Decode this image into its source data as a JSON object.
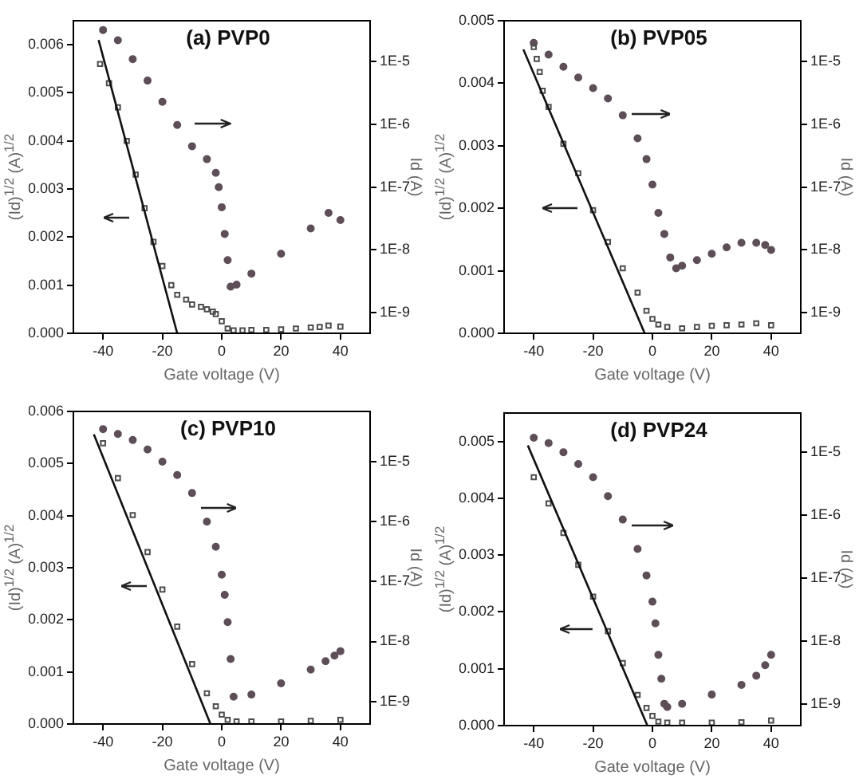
{
  "chart_data": [
    {
      "type": "scatter",
      "title": "(a) PVP0",
      "xlabel": "Gate voltage (V)",
      "ylabel": "(Id)$^{1/2}$ (A)$^{1/2}$",
      "y2label": "Id (A)",
      "grid": false,
      "legend": false,
      "xlim": [
        -50,
        50
      ],
      "xticks": [
        -40,
        -20,
        0,
        20,
        40
      ],
      "ylim": [
        0,
        0.0065
      ],
      "yticks": [
        {
          "value": 0,
          "label": "0.000"
        },
        {
          "value": 0.001,
          "label": "0.001"
        },
        {
          "value": 0.002,
          "label": "0.002"
        },
        {
          "value": 0.003,
          "label": "0.003"
        },
        {
          "value": 0.004,
          "label": "0.004"
        },
        {
          "value": 0.005,
          "label": "0.005"
        },
        {
          "value": 0.006,
          "label": "0.006"
        }
      ],
      "y2lim": [
        4.7e-10,
        4.5e-05
      ],
      "y2ticks": [
        {
          "value": 1e-05,
          "label": "1E-5"
        },
        {
          "value": 1e-06,
          "label": "1E-6"
        },
        {
          "value": 1e-07,
          "label": "1E-7"
        },
        {
          "value": 1e-08,
          "label": "1E-8"
        },
        {
          "value": 1e-09,
          "label": "1E-9"
        }
      ],
      "log": "y2",
      "series": [
        {
          "type": "scatter",
          "marker": "square",
          "color": "#4d4d4d",
          "x": [
            -41,
            -38,
            -35,
            -32,
            -29,
            -26,
            -23,
            -20,
            -17,
            -15,
            -12,
            -10,
            -7,
            -5,
            -3,
            -2,
            0,
            2,
            4,
            7,
            10,
            15,
            20,
            25,
            30,
            33,
            36,
            40
          ],
          "values": [
            0.0056,
            0.0052,
            0.0047,
            0.004,
            0.0033,
            0.0026,
            0.0019,
            0.0014,
            0.001,
            0.0008,
            0.0007,
            0.0006,
            0.00055,
            0.0005,
            0.00045,
            0.0004,
            0.00025,
            0.0001,
            6e-05,
            6e-05,
            7e-05,
            7e-05,
            8e-05,
            0.0001,
            0.00012,
            0.00013,
            0.00016,
            0.00014
          ]
        },
        {
          "type": "line",
          "marker": "none",
          "color": "#111111",
          "x": [
            -41.5,
            -15
          ],
          "values": [
            0.0061,
            0
          ]
        },
        {
          "type": "scatter",
          "marker": "circle",
          "color": "#5e4e58",
          "axis": "y2",
          "x": [
            -40,
            -35,
            -30,
            -25,
            -20,
            -15,
            -10,
            -5,
            -2,
            -1,
            0,
            1,
            2,
            3,
            5,
            10,
            20,
            30,
            36,
            40
          ],
          "values": [
            3.2e-05,
            2.2e-05,
            1.1e-05,
            5e-06,
            2.3e-06,
            9.8e-07,
            4.5e-07,
            2.8e-07,
            1.7e-07,
            1e-07,
            4.8e-08,
            1.8e-08,
            6.9e-09,
            2.6e-09,
            2.8e-09,
            4.2e-09,
            8.7e-09,
            2.2e-08,
            3.9e-08,
            3e-08
          ]
        }
      ]
    },
    {
      "type": "scatter",
      "title": "(b) PVP05",
      "xlabel": "Gate voltage (V)",
      "ylabel": "(Id)$^{1/2}$ (A)$^{1/2}$",
      "y2label": "Id (A)",
      "grid": false,
      "legend": false,
      "xlim": [
        -50,
        50
      ],
      "xticks": [
        -40,
        -20,
        0,
        20,
        40
      ],
      "ylim": [
        0,
        0.005
      ],
      "yticks": [
        {
          "value": 0,
          "label": "0.000"
        },
        {
          "value": 0.001,
          "label": "0.001"
        },
        {
          "value": 0.002,
          "label": "0.002"
        },
        {
          "value": 0.003,
          "label": "0.003"
        },
        {
          "value": 0.004,
          "label": "0.004"
        },
        {
          "value": 0.005,
          "label": "0.005"
        }
      ],
      "y2lim": [
        4.7e-10,
        4.5e-05
      ],
      "y2ticks": [
        {
          "value": 1e-05,
          "label": "1E-5"
        },
        {
          "value": 1e-06,
          "label": "1E-6"
        },
        {
          "value": 1e-07,
          "label": "1E-7"
        },
        {
          "value": 1e-08,
          "label": "1E-8"
        },
        {
          "value": 1e-09,
          "label": "1E-9"
        }
      ],
      "log": "y2",
      "series": [
        {
          "type": "scatter",
          "marker": "square",
          "color": "#4d4d4d",
          "x": [
            -40,
            -39,
            -38,
            -37,
            -35,
            -30,
            -25,
            -20,
            -15,
            -10,
            -5,
            -2,
            0,
            2,
            5,
            10,
            15,
            20,
            25,
            30,
            35,
            40
          ],
          "values": [
            0.00458,
            0.00439,
            0.00418,
            0.00388,
            0.00362,
            0.00303,
            0.00256,
            0.00197,
            0.00146,
            0.00104,
            0.00065,
            0.00036,
            0.00023,
            0.00014,
            0.0001,
            8e-05,
            0.0001,
            0.00012,
            0.00013,
            0.00014,
            0.00016,
            0.00013
          ]
        },
        {
          "type": "line",
          "marker": "none",
          "color": "#111111",
          "x": [
            -43.5,
            -2.6
          ],
          "values": [
            0.00454,
            0
          ]
        },
        {
          "type": "scatter",
          "marker": "circle",
          "color": "#5e4e58",
          "axis": "y2",
          "x": [
            -40,
            -35,
            -30,
            -25,
            -20,
            -15,
            -10,
            -5,
            -2,
            0,
            2,
            4,
            6,
            8,
            10,
            15,
            20,
            25,
            30,
            35,
            38,
            40
          ],
          "values": [
            2e-05,
            1.3e-05,
            8.3e-06,
            5.6e-06,
            3.8e-06,
            2.6e-06,
            1.4e-06,
            6e-07,
            2.8e-07,
            1.1e-07,
            3.9e-08,
            1.8e-08,
            7.6e-09,
            5.1e-09,
            5.6e-09,
            6.9e-09,
            8.7e-09,
            1.1e-08,
            1.3e-08,
            1.3e-08,
            1.2e-08,
            1e-08
          ]
        }
      ]
    },
    {
      "type": "scatter",
      "title": "(c) PVP10",
      "xlabel": "Gate voltage (V)",
      "ylabel": "(Id)$^{1/2}$ (A)$^{1/2}$",
      "y2label": "Id (A)",
      "grid": false,
      "legend": false,
      "xlim": [
        -50,
        50
      ],
      "xticks": [
        -40,
        -20,
        0,
        20,
        40
      ],
      "ylim": [
        0,
        0.006
      ],
      "yticks": [
        {
          "value": 0,
          "label": "0.000"
        },
        {
          "value": 0.001,
          "label": "0.001"
        },
        {
          "value": 0.002,
          "label": "0.002"
        },
        {
          "value": 0.003,
          "label": "0.003"
        },
        {
          "value": 0.004,
          "label": "0.004"
        },
        {
          "value": 0.005,
          "label": "0.005"
        },
        {
          "value": 0.006,
          "label": "0.006"
        }
      ],
      "y2lim": [
        4.2e-10,
        6.9e-05
      ],
      "y2ticks": [
        {
          "value": 1e-05,
          "label": "1E-5"
        },
        {
          "value": 1e-06,
          "label": "1E-6"
        },
        {
          "value": 1e-07,
          "label": "1E-7"
        },
        {
          "value": 1e-08,
          "label": "1E-8"
        },
        {
          "value": 1e-09,
          "label": "1E-9"
        }
      ],
      "log": "y2",
      "series": [
        {
          "type": "scatter",
          "marker": "square",
          "color": "#4d4d4d",
          "x": [
            -40,
            -35,
            -30,
            -25,
            -20,
            -15,
            -10,
            -5,
            -2,
            0,
            2,
            5,
            10,
            20,
            30,
            40
          ],
          "values": [
            0.00539,
            0.00472,
            0.00401,
            0.0033,
            0.00258,
            0.00187,
            0.00115,
            0.00059,
            0.00034,
            0.00018,
            8e-05,
            5e-05,
            5e-05,
            5e-05,
            6e-05,
            8e-05
          ]
        },
        {
          "type": "line",
          "marker": "none",
          "color": "#111111",
          "x": [
            -43.1,
            -3.8
          ],
          "values": [
            0.00556,
            0
          ]
        },
        {
          "type": "scatter",
          "marker": "circle",
          "color": "#5e4e58",
          "axis": "y2",
          "x": [
            -40,
            -35,
            -30,
            -25,
            -20,
            -15,
            -10,
            -5,
            -2,
            0,
            1,
            2,
            3,
            4,
            10,
            20,
            30,
            35,
            38,
            40
          ],
          "values": [
            3.5e-05,
            2.9e-05,
            2.3e-05,
            1.6e-05,
            1e-05,
            6e-06,
            3e-06,
            1e-06,
            3.8e-07,
            1.3e-07,
            6e-08,
            2.1e-08,
            5.1e-09,
            1.2e-09,
            1.3e-09,
            2e-09,
            3.4e-09,
            4.7e-09,
            5.8e-09,
            6.9e-09
          ]
        }
      ]
    },
    {
      "type": "scatter",
      "title": "(d) PVP24",
      "xlabel": "Gate voltage (V)",
      "ylabel": "(Id)$^{1/2}$ (A)$^{1/2}$",
      "y2label": "Id (A)",
      "grid": false,
      "legend": false,
      "xlim": [
        -50,
        50
      ],
      "xticks": [
        -40,
        -20,
        0,
        20,
        40
      ],
      "ylim": [
        0,
        0.0055
      ],
      "yticks": [
        {
          "value": 0,
          "label": "0.000"
        },
        {
          "value": 0.001,
          "label": "0.001"
        },
        {
          "value": 0.002,
          "label": "0.002"
        },
        {
          "value": 0.003,
          "label": "0.003"
        },
        {
          "value": 0.004,
          "label": "0.004"
        },
        {
          "value": 0.005,
          "label": "0.005"
        }
      ],
      "y2lim": [
        4.5e-10,
        4.2e-05
      ],
      "y2ticks": [
        {
          "value": 1e-05,
          "label": "1E-5"
        },
        {
          "value": 1e-06,
          "label": "1E-6"
        },
        {
          "value": 1e-07,
          "label": "1E-7"
        },
        {
          "value": 1e-08,
          "label": "1E-8"
        },
        {
          "value": 1e-09,
          "label": "1E-9"
        }
      ],
      "log": "y2",
      "series": [
        {
          "type": "scatter",
          "marker": "square",
          "color": "#4d4d4d",
          "x": [
            -40,
            -35,
            -30,
            -25,
            -20,
            -15,
            -10,
            -5,
            -2,
            0,
            2,
            5,
            10,
            20,
            30,
            40
          ],
          "values": [
            0.00437,
            0.00391,
            0.00339,
            0.00283,
            0.00227,
            0.00166,
            0.0011,
            0.00054,
            0.00031,
            0.00017,
            7e-05,
            5e-05,
            5e-05,
            5e-05,
            6e-05,
            9e-05
          ]
        },
        {
          "type": "line",
          "marker": "none",
          "color": "#111111",
          "x": [
            -42,
            -1.7
          ],
          "values": [
            0.00493,
            0
          ]
        },
        {
          "type": "scatter",
          "marker": "circle",
          "color": "#5e4e58",
          "axis": "y2",
          "x": [
            -40,
            -35,
            -30,
            -25,
            -20,
            -15,
            -10,
            -5,
            -2,
            0,
            1,
            2,
            3,
            4,
            5,
            10,
            20,
            30,
            35,
            38,
            40
          ],
          "values": [
            1.7e-05,
            1.4e-05,
            1e-05,
            6.5e-06,
            4e-06,
            2e-06,
            8.5e-07,
            2.9e-07,
            1.1e-07,
            4.2e-08,
            1.9e-08,
            6e-09,
            2.5e-09,
            1e-09,
            8.9e-10,
            1e-09,
            1.4e-09,
            2e-09,
            2.8e-09,
            4.1e-09,
            6e-09
          ]
        }
      ]
    }
  ]
}
